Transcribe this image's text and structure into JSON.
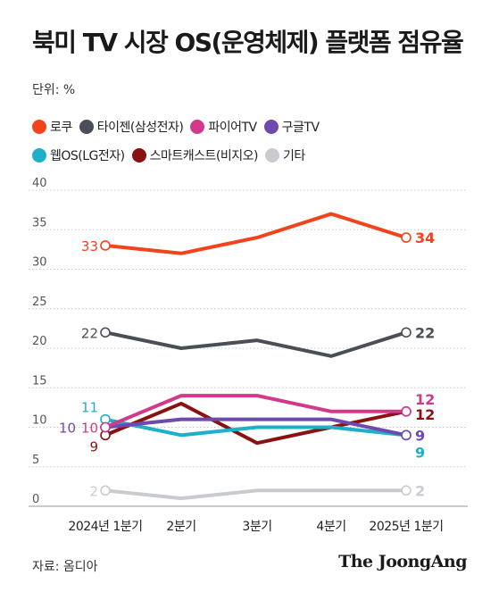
{
  "header": {
    "title": "북미 TV 시장 OS(운영체제) 플랫폼 점유율",
    "unit": "단위: %"
  },
  "footer": {
    "source": "자료: 옴디아",
    "brand": "The JoongAng"
  },
  "colors": {
    "로쿠": "#f2431c",
    "타이젠(삼성전자)": "#4a4f55",
    "파이어TV": "#d2398a",
    "구글TV": "#6d4aab",
    "웹OS(LG전자)": "#1fb0c9",
    "스마트캐스트(비지오)": "#8a1111",
    "기타": "#c8ccd1"
  },
  "chart_data": {
    "type": "line",
    "title": "북미 TV 시장 OS(운영체제) 플랫폼 점유율",
    "unit": "단위: %",
    "categories": [
      "2024년 1분기",
      "2분기",
      "3분기",
      "4분기",
      "2025년 1분기"
    ],
    "ylim": [
      0,
      40
    ],
    "yticks": [
      0,
      5,
      10,
      15,
      20,
      25,
      30,
      35,
      40
    ],
    "grid": true,
    "legend_position": "top",
    "series": [
      {
        "name": "로쿠",
        "values": [
          33,
          32,
          34,
          37,
          34
        ],
        "start_label": "33",
        "end_label": "34"
      },
      {
        "name": "타이젠(삼성전자)",
        "values": [
          22,
          20,
          21,
          19,
          22
        ],
        "start_label": "22",
        "end_label": "22"
      },
      {
        "name": "파이어TV",
        "values": [
          10,
          14,
          14,
          12,
          12
        ],
        "start_label": "10",
        "end_label": "12"
      },
      {
        "name": "구글TV",
        "values": [
          10,
          11,
          11,
          11,
          9
        ],
        "start_label": "10",
        "end_label": "9"
      },
      {
        "name": "웹OS(LG전자)",
        "values": [
          11,
          9,
          10,
          10,
          9
        ],
        "start_label": "11",
        "end_label": "9"
      },
      {
        "name": "스마트캐스트(비지오)",
        "values": [
          9,
          13,
          8,
          10,
          12
        ],
        "start_label": "9",
        "end_label": "12"
      },
      {
        "name": "기타",
        "values": [
          2,
          1,
          2,
          2,
          2
        ],
        "start_label": "2",
        "end_label": "2"
      }
    ]
  }
}
